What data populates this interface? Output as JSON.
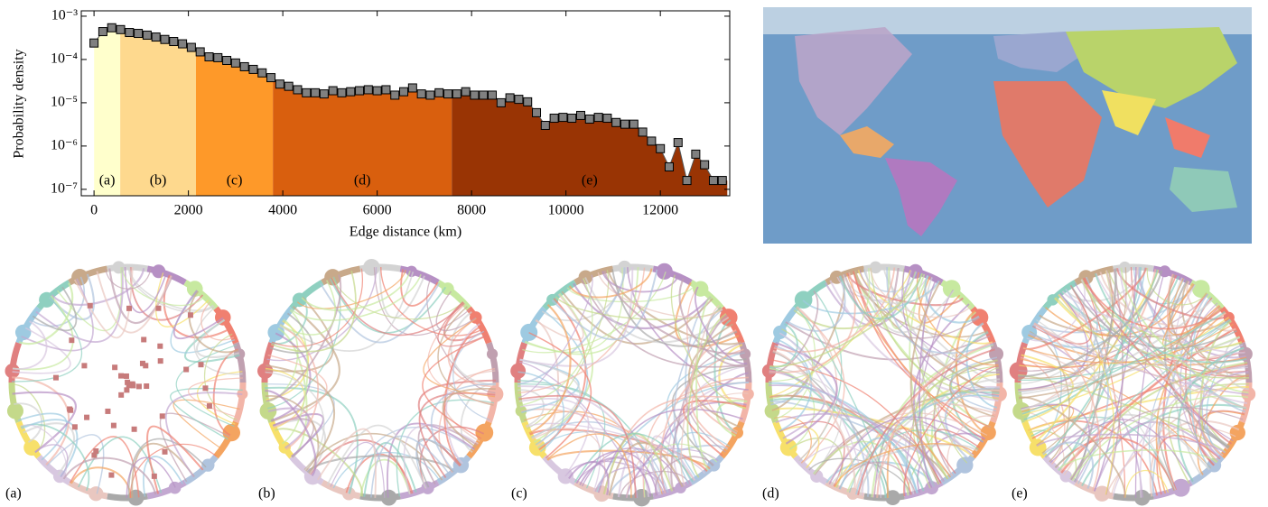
{
  "chart_data": {
    "type": "line",
    "log_y": true,
    "ylabel": "Probability density",
    "xlabel": "Edge distance (km)",
    "x": [
      0,
      187.5,
      375,
      562.5,
      750,
      937.5,
      1125,
      1312.5,
      1500,
      1687.5,
      1875,
      2062.5,
      2250,
      2437.5,
      2625,
      2812.5,
      3000,
      3187.5,
      3375,
      3562.5,
      3750,
      3937.5,
      4125,
      4312.5,
      4500,
      4687.5,
      4875,
      5062.5,
      5250,
      5437.5,
      5625,
      5812.5,
      6000,
      6187.5,
      6375,
      6562.5,
      6750,
      6937.5,
      7125,
      7312.5,
      7500,
      7687.5,
      7875,
      8062.5,
      8250,
      8437.5,
      8625,
      8812.5,
      9000,
      9187.5,
      9375,
      9562.5,
      9750,
      9937.5,
      10125,
      10312.5,
      10500,
      10687.5,
      10875,
      11062.5,
      11250,
      11437.5,
      11625,
      11812.5,
      12000,
      12187.5,
      12375,
      12562.5,
      12750,
      12937.5,
      13125,
      13312.5
    ],
    "values": [
      0.00024,
      0.00044,
      0.00054,
      0.00049,
      0.00042,
      0.0004,
      0.000365,
      0.00033,
      0.00029,
      0.00026,
      0.00023,
      0.00019,
      0.00015,
      0.000115,
      0.00011,
      9.5e-05,
      8.3e-05,
      6.8e-05,
      5.9e-05,
      4.9e-05,
      3.8e-05,
      2.7e-05,
      2.4e-05,
      2e-05,
      1.7e-05,
      1.7e-05,
      1.6e-05,
      1.9e-05,
      1.7e-05,
      1.8e-05,
      1.9e-05,
      2e-05,
      1.9e-05,
      2e-05,
      1.5e-05,
      1.8e-05,
      2.2e-05,
      1.6e-05,
      1.5e-05,
      1.7e-05,
      1.6e-05,
      1.6e-05,
      1.8e-05,
      1.5e-05,
      1.5e-05,
      1.5e-05,
      1e-05,
      1.3e-05,
      1.2e-05,
      1.05e-05,
      5.9e-06,
      3e-06,
      4.4e-06,
      4.6e-06,
      4.4e-06,
      5.1e-06,
      4.2e-06,
      4.6e-06,
      4.4e-06,
      3.5e-06,
      3.2e-06,
      3.2e-06,
      2.1e-06,
      1.3e-06,
      8.7e-07,
      3.3e-07,
      1.2e-06,
      1.6e-07,
      6.5e-07,
      3.7e-07,
      1.6e-07,
      1.6e-07
    ],
    "color": "#808080",
    "regions": [
      {
        "label": "(a)",
        "from": 0,
        "to": 555,
        "color": "#ffffcc"
      },
      {
        "label": "(b)",
        "from": 555,
        "to": 2160,
        "color": "#fed98e"
      },
      {
        "label": "(c)",
        "from": 2160,
        "to": 3790,
        "color": "#fe9929"
      },
      {
        "label": "(d)",
        "from": 3790,
        "to": 7580,
        "color": "#d95f0e"
      },
      {
        "label": "(e)",
        "from": 7580,
        "to": 13420,
        "color": "#993404"
      }
    ],
    "xlim": [
      -270,
      13470
    ],
    "xticks": [
      0,
      2000,
      4000,
      6000,
      8000,
      10000,
      12000
    ],
    "ylim": [
      7.1e-08,
      0.00133
    ],
    "yticks": [
      {
        "value": 1e-07,
        "label": "10⁻⁷"
      },
      {
        "value": 1e-06,
        "label": "10⁻⁶"
      },
      {
        "value": 1e-05,
        "label": "10⁻⁵"
      },
      {
        "value": 0.0001,
        "label": "10⁻⁴"
      },
      {
        "value": 0.001,
        "label": "10⁻³"
      }
    ]
  },
  "panel_labels": [
    "(a)",
    "(b)",
    "(c)",
    "(d)",
    "(e)"
  ]
}
